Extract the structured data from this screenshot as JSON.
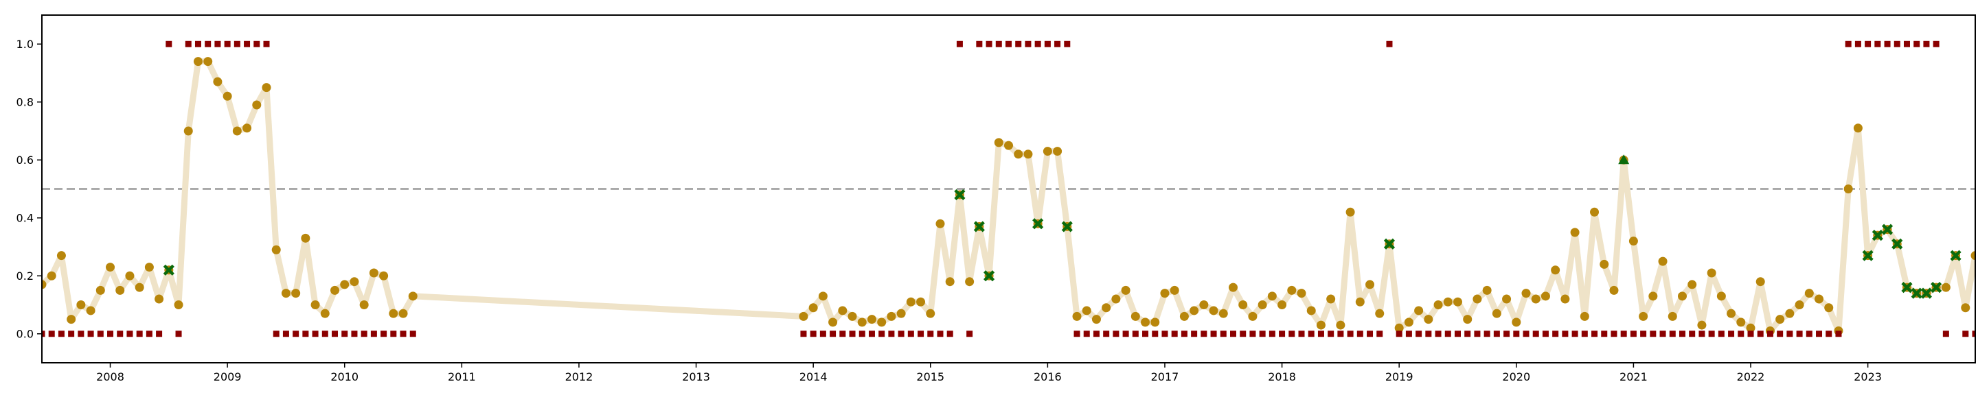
{
  "chart_data": {
    "type": "scatter",
    "title": "",
    "xlabel": "",
    "ylabel": "",
    "grid": false,
    "x_range": [
      "2007-06",
      "2023-12"
    ],
    "ylim": [
      -0.1,
      1.1
    ],
    "yticks": [
      "0.0",
      "0.2",
      "0.4",
      "0.6",
      "0.8",
      "1.0"
    ],
    "xticks": [
      "2008",
      "2009",
      "2010",
      "2011",
      "2012",
      "2013",
      "2014",
      "2015",
      "2016",
      "2017",
      "2018",
      "2019",
      "2020",
      "2021",
      "2022",
      "2023"
    ],
    "threshold": 0.5,
    "colors": {
      "score_line": "#efe3c8",
      "score_point": "#b8860b",
      "cross_marker": "#0b6b0b",
      "triangle_marker": "#0b6b0b",
      "label_marker": "#8b0000",
      "threshold_line": "#999999"
    },
    "score_segments": [
      {
        "start": "2007-06",
        "values": [
          0.17,
          0.2,
          0.27,
          0.05,
          0.1,
          0.08,
          0.15,
          0.23,
          0.15,
          0.2,
          0.16,
          0.23,
          0.12,
          0.22,
          0.1,
          0.7,
          0.94,
          0.94,
          0.87,
          0.82,
          0.7,
          0.71,
          0.79,
          0.85,
          0.29,
          0.14,
          0.14,
          0.33,
          0.1,
          0.07,
          0.15,
          0.17,
          0.18,
          0.1,
          0.21,
          0.2,
          0.07,
          0.07,
          0.13
        ]
      },
      {
        "start": "2013-12",
        "values": [
          0.06,
          0.09,
          0.13,
          0.04,
          0.08,
          0.06,
          0.04,
          0.05,
          0.04,
          0.06,
          0.07,
          0.11,
          0.11,
          0.07,
          0.38,
          0.18,
          0.48,
          0.18,
          0.37,
          0.2,
          0.66,
          0.65,
          0.62,
          0.62,
          0.38,
          0.63,
          0.63,
          0.37,
          0.06,
          0.08,
          0.05,
          0.09,
          0.12,
          0.15,
          0.06,
          0.04,
          0.04,
          0.14,
          0.15,
          0.06,
          0.08,
          0.1,
          0.08,
          0.07,
          0.16,
          0.1,
          0.06,
          0.1,
          0.13,
          0.1,
          0.15,
          0.14,
          0.08,
          0.03,
          0.12,
          0.03,
          0.42,
          0.11,
          0.17,
          0.07,
          0.31,
          0.02,
          0.04,
          0.08,
          0.05,
          0.1,
          0.11,
          0.11,
          0.05,
          0.12,
          0.15,
          0.07,
          0.12,
          0.04,
          0.14,
          0.12,
          0.13,
          0.22,
          0.12,
          0.35,
          0.06,
          0.42,
          0.24,
          0.15,
          0.6,
          0.32,
          0.06,
          0.13,
          0.25,
          0.06,
          0.13,
          0.17,
          0.03,
          0.21,
          0.13,
          0.07,
          0.04,
          0.02,
          0.18,
          0.01,
          0.05,
          0.07,
          0.1,
          0.14,
          0.12,
          0.09,
          0.01,
          0.5,
          0.71,
          0.27,
          0.34,
          0.36,
          0.31,
          0.16,
          0.14,
          0.14,
          0.16,
          0.16,
          0.27,
          0.09,
          0.27
        ]
      }
    ],
    "cross_points": [
      {
        "x": "2008-07",
        "y": 0.22
      },
      {
        "x": "2015-04",
        "y": 0.48
      },
      {
        "x": "2015-06",
        "y": 0.37
      },
      {
        "x": "2015-07",
        "y": 0.2
      },
      {
        "x": "2015-12",
        "y": 0.38
      },
      {
        "x": "2016-03",
        "y": 0.37
      },
      {
        "x": "2018-12",
        "y": 0.31
      },
      {
        "x": "2023-01",
        "y": 0.27
      },
      {
        "x": "2023-02",
        "y": 0.34
      },
      {
        "x": "2023-03",
        "y": 0.36
      },
      {
        "x": "2023-04",
        "y": 0.31
      },
      {
        "x": "2023-05",
        "y": 0.16
      },
      {
        "x": "2023-06",
        "y": 0.14
      },
      {
        "x": "2023-07",
        "y": 0.14
      },
      {
        "x": "2023-08",
        "y": 0.16
      },
      {
        "x": "2023-10",
        "y": 0.27
      }
    ],
    "triangle_points": [
      {
        "x": "2020-12",
        "y": 0.6
      }
    ],
    "label_segments": [
      {
        "start": "2007-06",
        "values": [
          0,
          0,
          0,
          0,
          0,
          0,
          0,
          0,
          0,
          0,
          0,
          0,
          0,
          1,
          0,
          1,
          1,
          1,
          1,
          1,
          1,
          1,
          1,
          1,
          0,
          0,
          0,
          0,
          0,
          0,
          0,
          0,
          0,
          0,
          0,
          0,
          0,
          0,
          0
        ]
      },
      {
        "start": "2013-12",
        "values": [
          0,
          0,
          0,
          0,
          0,
          0,
          0,
          0,
          0,
          0,
          0,
          0,
          0,
          0,
          0,
          0,
          1,
          0,
          1,
          1,
          1,
          1,
          1,
          1,
          1,
          1,
          1,
          1,
          0,
          0,
          0,
          0,
          0,
          0,
          0,
          0,
          0,
          0,
          0,
          0,
          0,
          0,
          0,
          0,
          0,
          0,
          0,
          0,
          0,
          0,
          0,
          0,
          0,
          0,
          0,
          0,
          0,
          0,
          0,
          0,
          1,
          0,
          0,
          0,
          0,
          0,
          0,
          0,
          0,
          0,
          0,
          0,
          0,
          0,
          0,
          0,
          0,
          0,
          0,
          0,
          0,
          0,
          0,
          0,
          0,
          0,
          0,
          0,
          0,
          0,
          0,
          0,
          0,
          0,
          0,
          0,
          0,
          0,
          0,
          0,
          0,
          0,
          0,
          0,
          0,
          0,
          0,
          1,
          1,
          1,
          1,
          1,
          1,
          1,
          1,
          1,
          1,
          0,
          null,
          0,
          0
        ]
      }
    ]
  }
}
